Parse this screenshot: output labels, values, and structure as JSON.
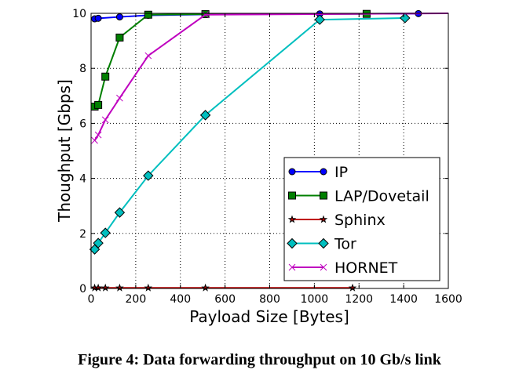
{
  "chart_data": {
    "type": "line",
    "xlabel": "Payload Size [Bytes]",
    "ylabel": "Thoughput [Gbps]",
    "xlim": [
      0,
      1600
    ],
    "ylim": [
      0,
      10
    ],
    "xticks": [
      0,
      200,
      400,
      600,
      800,
      1000,
      1200,
      1400,
      1600
    ],
    "yticks": [
      0,
      2,
      4,
      6,
      8,
      10
    ],
    "grid": true,
    "legend_position": "lower-right",
    "series": [
      {
        "name": "IP",
        "color": "#0000ff",
        "marker": "circle",
        "x": [
          16,
          32,
          128,
          256,
          512,
          1024,
          1466
        ],
        "y": [
          9.8,
          9.82,
          9.87,
          9.93,
          9.96,
          9.98,
          9.99
        ]
      },
      {
        "name": "LAP/Dovetail",
        "color": "#007f00",
        "marker": "square",
        "x": [
          16,
          32,
          64,
          128,
          256,
          512,
          1234
        ],
        "y": [
          6.61,
          6.67,
          7.7,
          9.12,
          9.95,
          9.97,
          9.98
        ]
      },
      {
        "name": "Sphinx",
        "color": "#bf0000",
        "marker": "star",
        "x": [
          16,
          32,
          64,
          128,
          256,
          512,
          1171
        ],
        "y": [
          0.02,
          0.02,
          0.02,
          0.02,
          0.02,
          0.02,
          0.02
        ]
      },
      {
        "name": "Tor",
        "color": "#00bfbf",
        "marker": "diamond",
        "x": [
          16,
          32,
          64,
          128,
          256,
          512,
          1024,
          1406
        ],
        "y": [
          1.42,
          1.65,
          2.02,
          2.76,
          4.1,
          6.3,
          9.77,
          9.83
        ]
      },
      {
        "name": "HORNET",
        "color": "#bf00bf",
        "marker": "x",
        "x": [
          16,
          32,
          64,
          128,
          256,
          512,
          1600
        ],
        "y": [
          5.38,
          5.58,
          6.13,
          6.92,
          8.46,
          9.95,
          10.0
        ]
      }
    ]
  },
  "caption": "Figure 4: Data forwarding throughput on 10 Gb/s link"
}
